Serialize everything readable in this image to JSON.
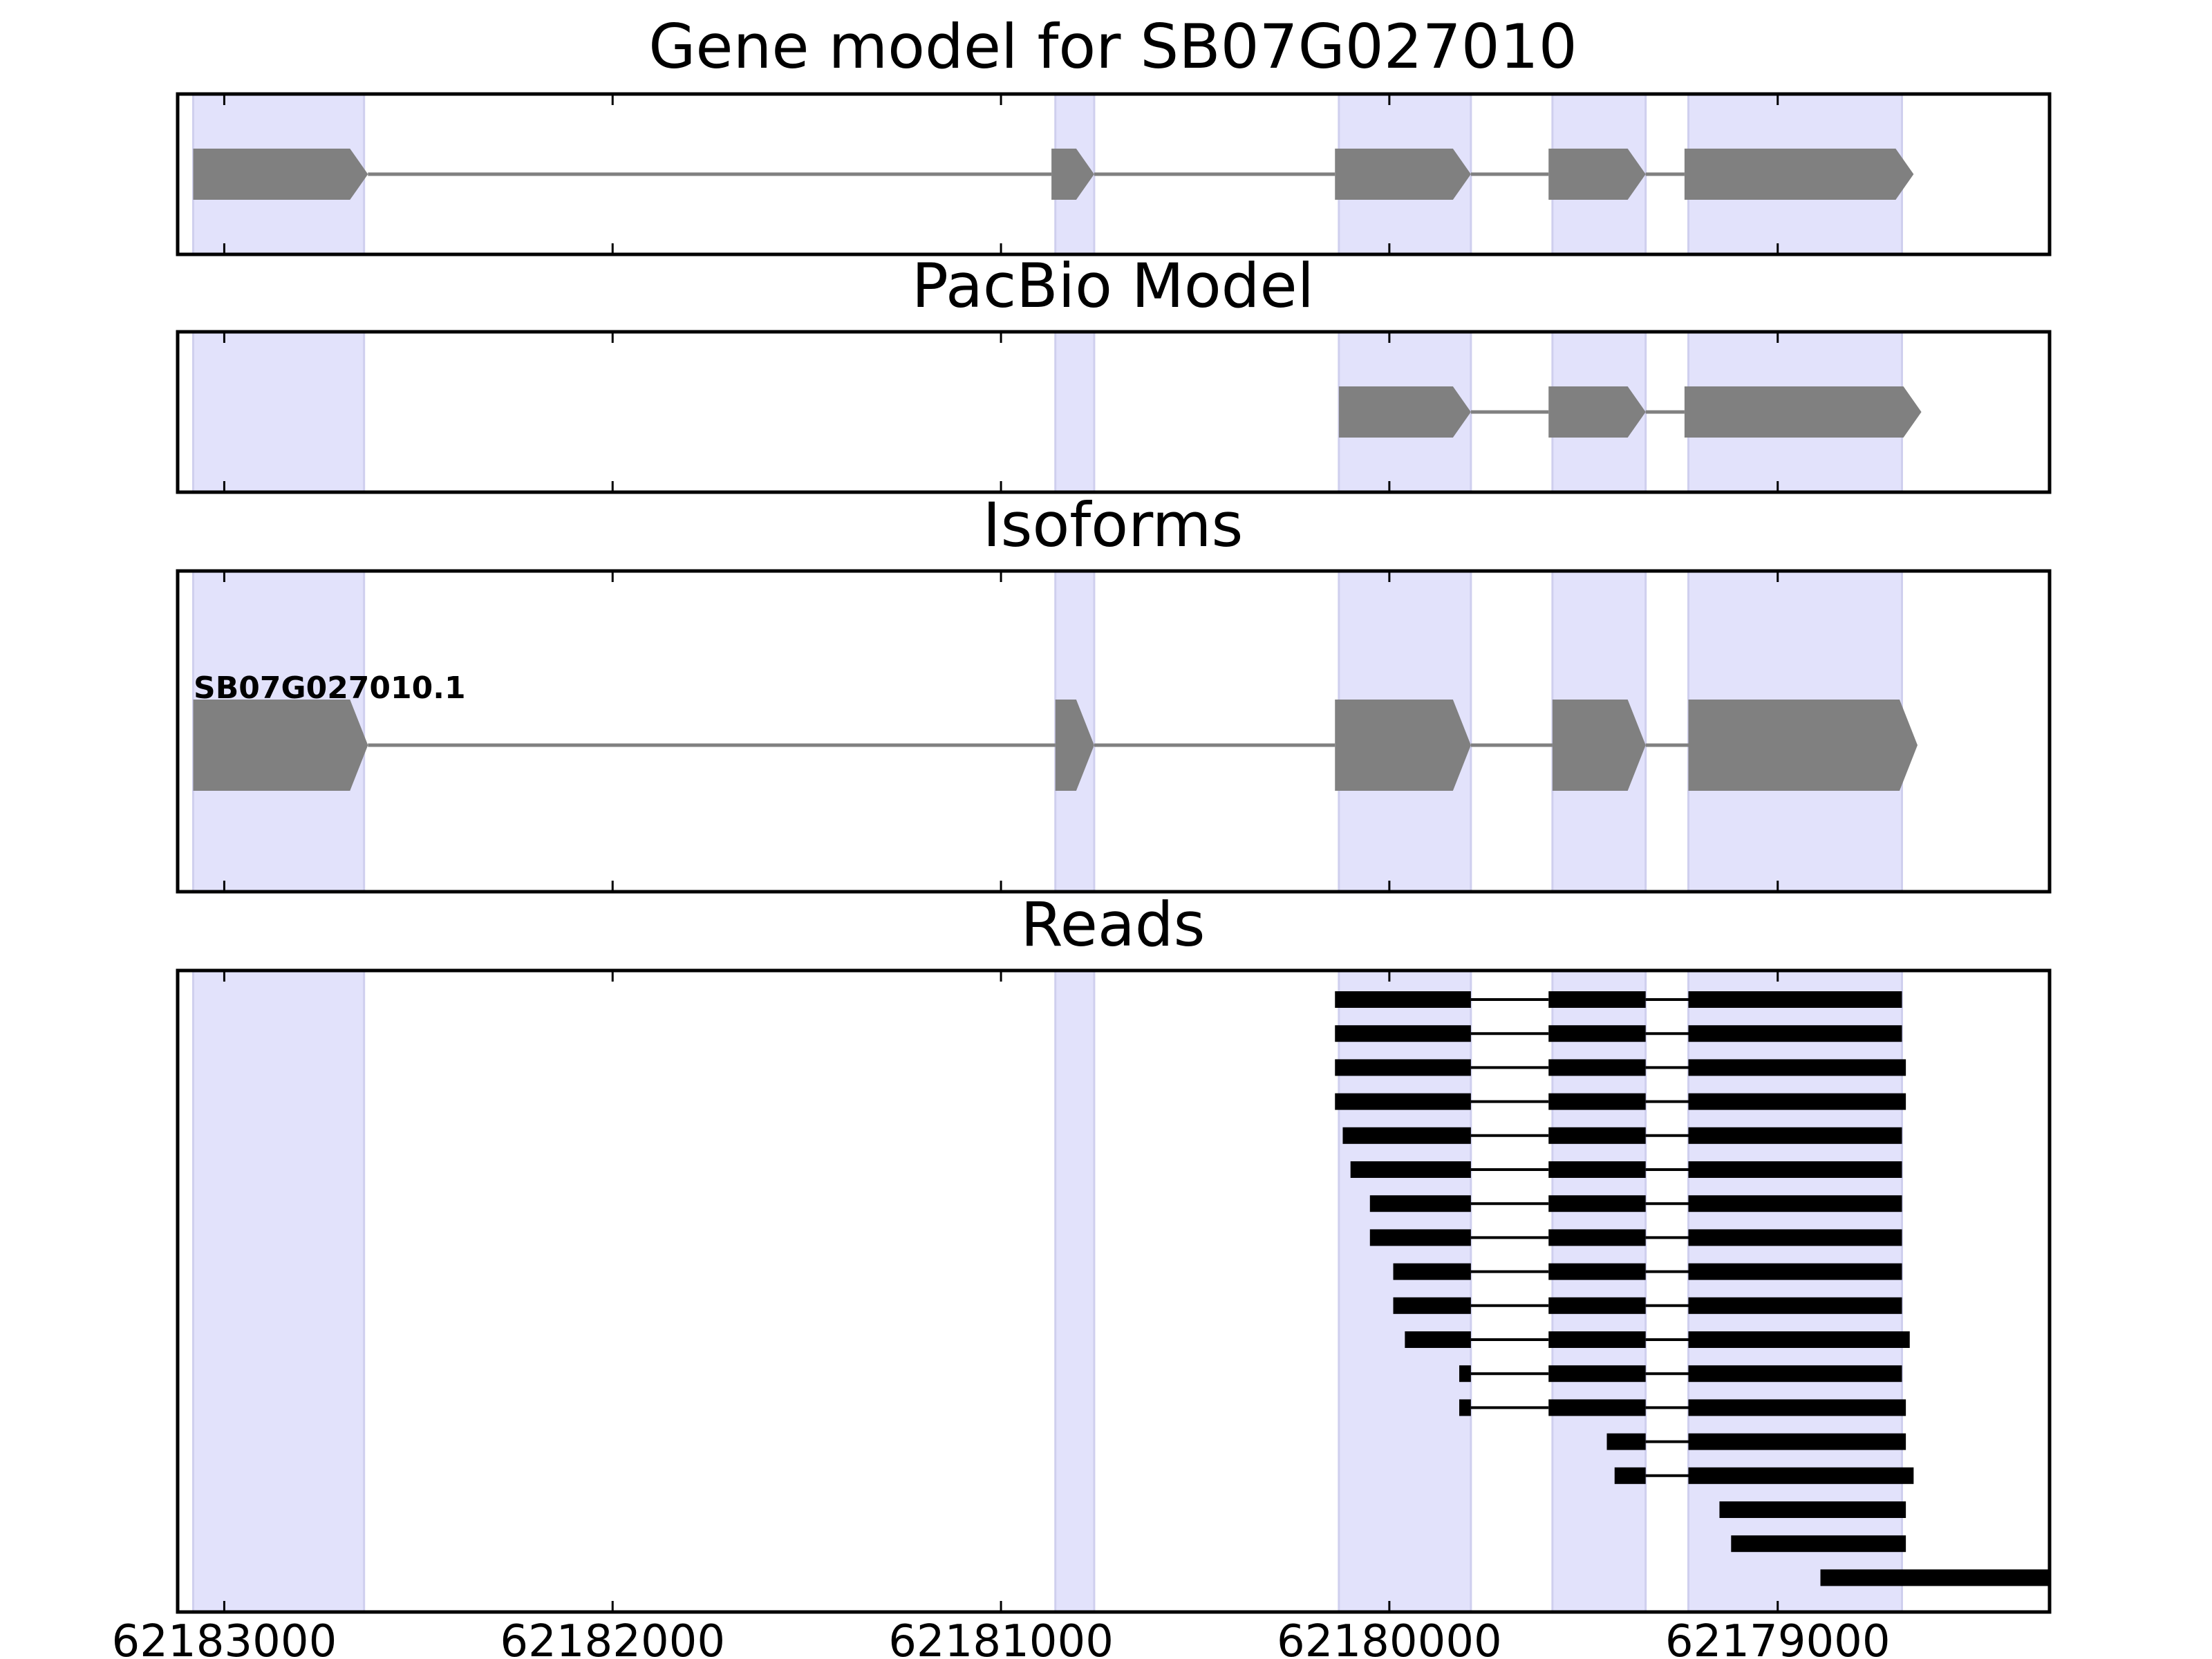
{
  "chart_data": {
    "type": "gene-track",
    "title": "Gene model for SB07G027010",
    "xlim": [
      62183120,
      62178300
    ],
    "xticks": [
      62183000,
      62182000,
      62181000,
      62180000,
      62179000
    ],
    "tick_labels": [
      "62183000",
      "62182000",
      "62181000",
      "62180000",
      "62179000"
    ],
    "colors": {
      "exon_fill": "#808080",
      "intron_line": "#808080",
      "highlight": "#e2e2fb",
      "highlight_edge": "#cfcfee",
      "read": "#000000"
    },
    "highlight_exons": [
      [
        62183080,
        62182640
      ],
      [
        62180860,
        62180760
      ],
      [
        62180130,
        62179790
      ],
      [
        62179580,
        62179340
      ],
      [
        62179230,
        62178680
      ]
    ],
    "panels": [
      {
        "title": "Gene model for SB07G027010",
        "strand": "-",
        "exons": [
          [
            62183080,
            62182630
          ],
          [
            62180870,
            62180760
          ],
          [
            62180140,
            62179790
          ],
          [
            62179590,
            62179340
          ],
          [
            62179240,
            62178650
          ]
        ]
      },
      {
        "title": "PacBio Model",
        "strand": "-",
        "exons": [
          [
            62180130,
            62179790
          ],
          [
            62179590,
            62179340
          ],
          [
            62179240,
            62178630
          ]
        ]
      },
      {
        "title": "Isoforms",
        "isoforms": [
          {
            "name": "SB07G027010.1",
            "strand": "-",
            "exons": [
              [
                62183080,
                62182630
              ],
              [
                62180860,
                62180760
              ],
              [
                62180140,
                62179790
              ],
              [
                62179580,
                62179340
              ],
              [
                62179230,
                62178640
              ]
            ]
          }
        ]
      },
      {
        "title": "Reads",
        "reads": [
          [
            [
              62180140,
              62179790
            ],
            [
              62179590,
              62179340
            ],
            [
              62179230,
              62178680
            ]
          ],
          [
            [
              62180140,
              62179790
            ],
            [
              62179590,
              62179340
            ],
            [
              62179230,
              62178680
            ]
          ],
          [
            [
              62180140,
              62179790
            ],
            [
              62179590,
              62179340
            ],
            [
              62179230,
              62178670
            ]
          ],
          [
            [
              62180140,
              62179790
            ],
            [
              62179590,
              62179340
            ],
            [
              62179230,
              62178670
            ]
          ],
          [
            [
              62180120,
              62179790
            ],
            [
              62179590,
              62179340
            ],
            [
              62179230,
              62178680
            ]
          ],
          [
            [
              62180100,
              62179790
            ],
            [
              62179590,
              62179340
            ],
            [
              62179230,
              62178680
            ]
          ],
          [
            [
              62180050,
              62179790
            ],
            [
              62179590,
              62179340
            ],
            [
              62179230,
              62178680
            ]
          ],
          [
            [
              62180050,
              62179790
            ],
            [
              62179590,
              62179340
            ],
            [
              62179230,
              62178680
            ]
          ],
          [
            [
              62179990,
              62179790
            ],
            [
              62179590,
              62179340
            ],
            [
              62179230,
              62178680
            ]
          ],
          [
            [
              62179990,
              62179790
            ],
            [
              62179590,
              62179340
            ],
            [
              62179230,
              62178680
            ]
          ],
          [
            [
              62179960,
              62179790
            ],
            [
              62179590,
              62179340
            ],
            [
              62179230,
              62178660
            ]
          ],
          [
            [
              62179820,
              62179790
            ],
            [
              62179590,
              62179340
            ],
            [
              62179230,
              62178680
            ]
          ],
          [
            [
              62179820,
              62179790
            ],
            [
              62179590,
              62179340
            ],
            [
              62179230,
              62178670
            ]
          ],
          [
            [
              62179440,
              62179340
            ],
            [
              62179230,
              62178670
            ]
          ],
          [
            [
              62179420,
              62179340
            ],
            [
              62179230,
              62178650
            ]
          ],
          [
            [
              62179150,
              62178670
            ]
          ],
          [
            [
              62179120,
              62178670
            ]
          ],
          [
            [
              62178890,
              62178300
            ]
          ]
        ]
      }
    ]
  }
}
